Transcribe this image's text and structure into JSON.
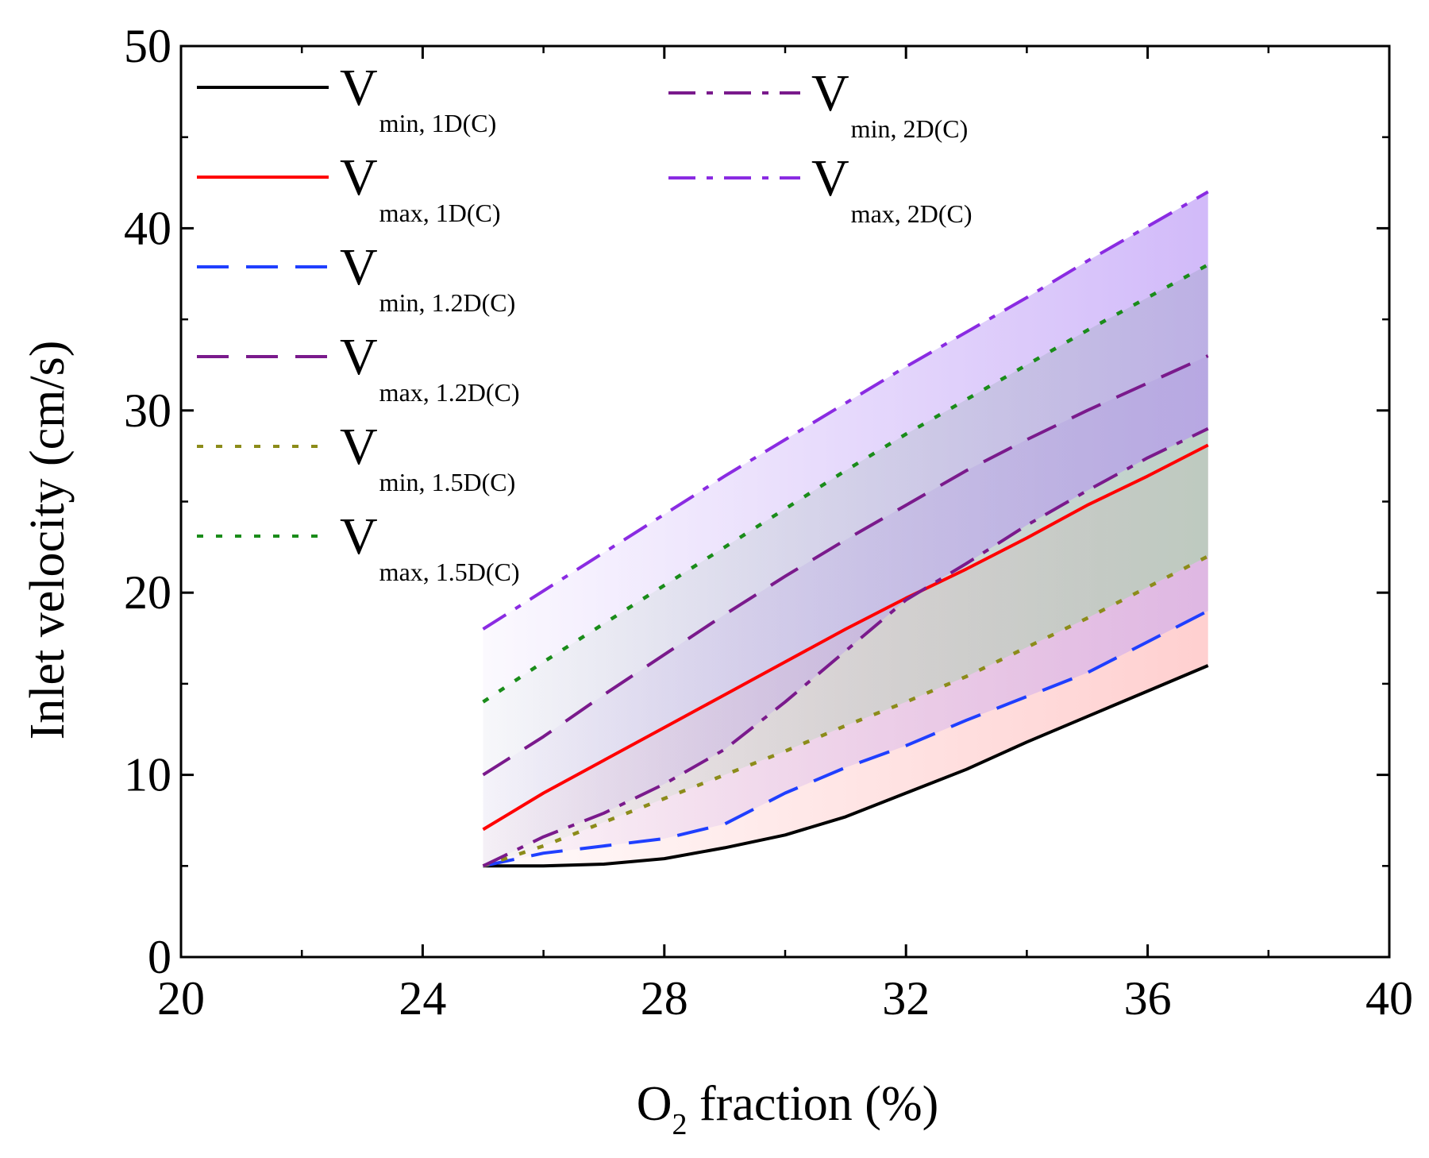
{
  "chart_data": {
    "type": "line",
    "title": "",
    "xlabel": {
      "main": "O",
      "subscript": "2",
      "rest": " fraction (%)"
    },
    "ylabel": "Inlet velocity (cm/s)",
    "xlim": [
      20,
      40
    ],
    "ylim": [
      0,
      50
    ],
    "xticks": [
      20,
      24,
      28,
      32,
      36,
      40
    ],
    "yticks": [
      0,
      10,
      20,
      30,
      40,
      50
    ],
    "xtick_labels": [
      "20",
      "24",
      "28",
      "32",
      "36",
      "40"
    ],
    "ytick_labels": [
      "0",
      "10",
      "20",
      "30",
      "40",
      "50"
    ],
    "grid": false,
    "legend_position": "top-left",
    "series": [
      {
        "id": "vmin_1d",
        "symbol": "V",
        "subscript": "min, 1D(C)",
        "color": "#000000",
        "dash": "solid",
        "x": [
          25,
          26,
          27,
          28,
          29,
          30,
          31,
          32,
          33,
          34,
          35,
          36,
          37
        ],
        "values": [
          5.0,
          5.0,
          5.1,
          5.4,
          6.0,
          6.7,
          7.7,
          9.0,
          10.3,
          11.8,
          13.2,
          14.6,
          16.0
        ]
      },
      {
        "id": "vmax_1d",
        "symbol": "V",
        "subscript": "max, 1D(C)",
        "color": "#ff0000",
        "dash": "solid",
        "x": [
          25,
          26,
          27,
          28,
          29,
          30,
          31,
          32,
          33,
          34,
          35,
          36,
          37
        ],
        "values": [
          7.0,
          9.0,
          10.8,
          12.6,
          14.4,
          16.2,
          18.0,
          19.7,
          21.3,
          23.0,
          24.8,
          26.4,
          28.1
        ]
      },
      {
        "id": "vmin_12d",
        "symbol": "V",
        "subscript": "min, 1.2D(C)",
        "color": "#1f3fff",
        "dash": "dashed",
        "x": [
          25,
          26,
          27,
          28,
          29,
          30,
          31,
          32,
          33,
          34,
          35,
          36,
          37
        ],
        "values": [
          5.0,
          5.7,
          6.1,
          6.5,
          7.3,
          9.0,
          10.4,
          11.6,
          13.0,
          14.3,
          15.6,
          17.3,
          19.0
        ]
      },
      {
        "id": "vmax_12d",
        "symbol": "V",
        "subscript": "max, 1.2D(C)",
        "color": "#7a1a8c",
        "dash": "dashed",
        "x": [
          25,
          26,
          27,
          28,
          29,
          30,
          31,
          32,
          33,
          34,
          35,
          36,
          37
        ],
        "values": [
          10.0,
          12.1,
          14.4,
          16.6,
          18.8,
          20.9,
          22.9,
          24.8,
          26.7,
          28.4,
          30.0,
          31.5,
          33.0
        ]
      },
      {
        "id": "vmin_15d",
        "symbol": "V",
        "subscript": "min, 1.5D(C)",
        "color": "#8c8c1a",
        "dash": "dotted",
        "x": [
          25,
          26,
          27,
          28,
          29,
          30,
          31,
          32,
          33,
          34,
          35,
          36,
          37
        ],
        "values": [
          5.0,
          6.1,
          7.4,
          8.7,
          10.0,
          11.3,
          12.7,
          14.0,
          15.4,
          17.0,
          18.6,
          20.3,
          22.0
        ]
      },
      {
        "id": "vmax_15d",
        "symbol": "V",
        "subscript": "max, 1.5D(C)",
        "color": "#1a8c1a",
        "dash": "dotted",
        "x": [
          25,
          26,
          27,
          28,
          29,
          30,
          31,
          32,
          33,
          34,
          35,
          36,
          37
        ],
        "values": [
          14.0,
          16.2,
          18.3,
          20.4,
          22.5,
          24.6,
          26.7,
          28.7,
          30.6,
          32.5,
          34.4,
          36.2,
          38.0
        ]
      },
      {
        "id": "vmin_2d",
        "symbol": "V",
        "subscript": "min, 2D(C)",
        "color": "#7a1a8c",
        "dash": "dashdot",
        "x": [
          25,
          26,
          27,
          28,
          29,
          30,
          31,
          32,
          33,
          34,
          35,
          36,
          37
        ],
        "values": [
          5.0,
          6.6,
          7.9,
          9.5,
          11.4,
          14.0,
          16.8,
          19.6,
          21.6,
          23.7,
          25.6,
          27.4,
          29.0
        ]
      },
      {
        "id": "vmax_2d",
        "symbol": "V",
        "subscript": "max, 2D(C)",
        "color": "#8a2be2",
        "dash": "dashdot",
        "x": [
          25,
          26,
          27,
          28,
          29,
          30,
          31,
          32,
          33,
          34,
          35,
          36,
          37
        ],
        "values": [
          18.0,
          20.1,
          22.2,
          24.3,
          26.4,
          28.4,
          30.4,
          32.4,
          34.3,
          36.2,
          38.2,
          40.1,
          42.0
        ]
      }
    ],
    "bands": [
      {
        "id": "band_1d",
        "lower": "vmin_1d",
        "upper": "vmax_1d",
        "color": "#ffb0b0"
      },
      {
        "id": "band_12d",
        "lower": "vmin_12d",
        "upper": "vmax_12d",
        "color": "#c9a8f0"
      },
      {
        "id": "band_15d",
        "lower": "vmin_15d",
        "upper": "vmax_15d",
        "color": "#a8d6a8"
      },
      {
        "id": "band_2d",
        "lower": "vmin_2d",
        "upper": "vmax_2d",
        "color": "#b38cf5"
      }
    ]
  }
}
